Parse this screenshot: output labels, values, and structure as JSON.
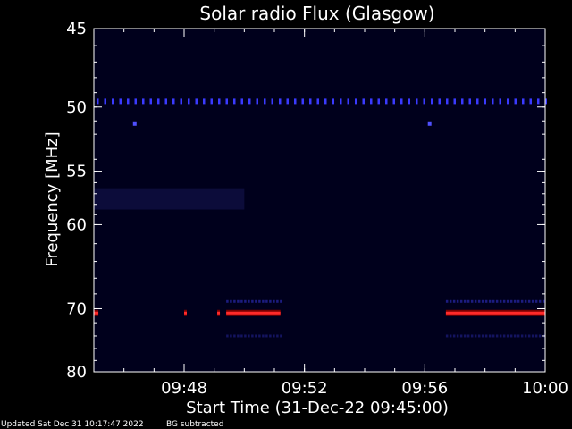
{
  "chart_data": {
    "type": "heatmap",
    "title": "Solar radio Flux (Glasgow)",
    "xlabel": "Start Time (31-Dec-22 09:45:00)",
    "ylabel": "Frequency [MHz]",
    "x_ticks": [
      "09:48",
      "09:52",
      "09:56",
      "10:00"
    ],
    "x_tick_minutes": [
      3,
      7,
      11,
      15
    ],
    "xlim_minutes_after_start": [
      0,
      15
    ],
    "y_ticks": [
      45,
      50,
      55,
      60,
      70,
      80
    ],
    "ylim": [
      45,
      80
    ],
    "y_scale": "reciprocal",
    "background": "#00001c",
    "features": [
      {
        "label": "steady emission line",
        "frequency_mhz": 49.6,
        "time_minutes": [
          0,
          15
        ],
        "color": "#3a3aff"
      },
      {
        "label": "isolated dot",
        "frequency_mhz": 51.2,
        "time_minutes": [
          1.3,
          1.4
        ],
        "color": "#5050ff"
      },
      {
        "label": "isolated dot",
        "frequency_mhz": 51.2,
        "time_minutes": [
          11.1,
          11.2
        ],
        "color": "#5050ff"
      },
      {
        "label": "strong band",
        "frequency_mhz": 70.6,
        "time_minutes": [
          0,
          0.15
        ],
        "color": "#ff2a2a"
      },
      {
        "label": "strong band",
        "frequency_mhz": 70.6,
        "time_minutes": [
          3.0,
          3.05
        ],
        "color": "#ff2a2a"
      },
      {
        "label": "strong band",
        "frequency_mhz": 70.6,
        "time_minutes": [
          4.1,
          4.15
        ],
        "color": "#ff2a2a"
      },
      {
        "label": "strong band",
        "frequency_mhz": 70.6,
        "time_minutes": [
          4.4,
          6.2
        ],
        "color": "#ff2a2a"
      },
      {
        "label": "strong band",
        "frequency_mhz": 70.6,
        "time_minutes": [
          11.7,
          15
        ],
        "color": "#ff2a2a"
      },
      {
        "label": "weak band",
        "frequency_mhz": 69.0,
        "time_minutes": [
          4.4,
          6.2
        ],
        "color": "#1c1c80"
      },
      {
        "label": "weak band",
        "frequency_mhz": 69.0,
        "time_minutes": [
          11.7,
          15
        ],
        "color": "#1c1c80"
      },
      {
        "label": "weak band",
        "frequency_mhz": 74.0,
        "time_minutes": [
          4.4,
          6.2
        ],
        "color": "#141460"
      },
      {
        "label": "weak band",
        "frequency_mhz": 74.0,
        "time_minutes": [
          11.7,
          15
        ],
        "color": "#141460"
      },
      {
        "label": "faint haze",
        "frequency_mhz_range": [
          56.5,
          58.5
        ],
        "time_minutes": [
          0,
          5
        ],
        "color": "#0c0c3a"
      }
    ]
  },
  "footer": {
    "updated": "Updated Sat Dec 31 10:17:47 2022",
    "mode": "BG subtracted"
  }
}
